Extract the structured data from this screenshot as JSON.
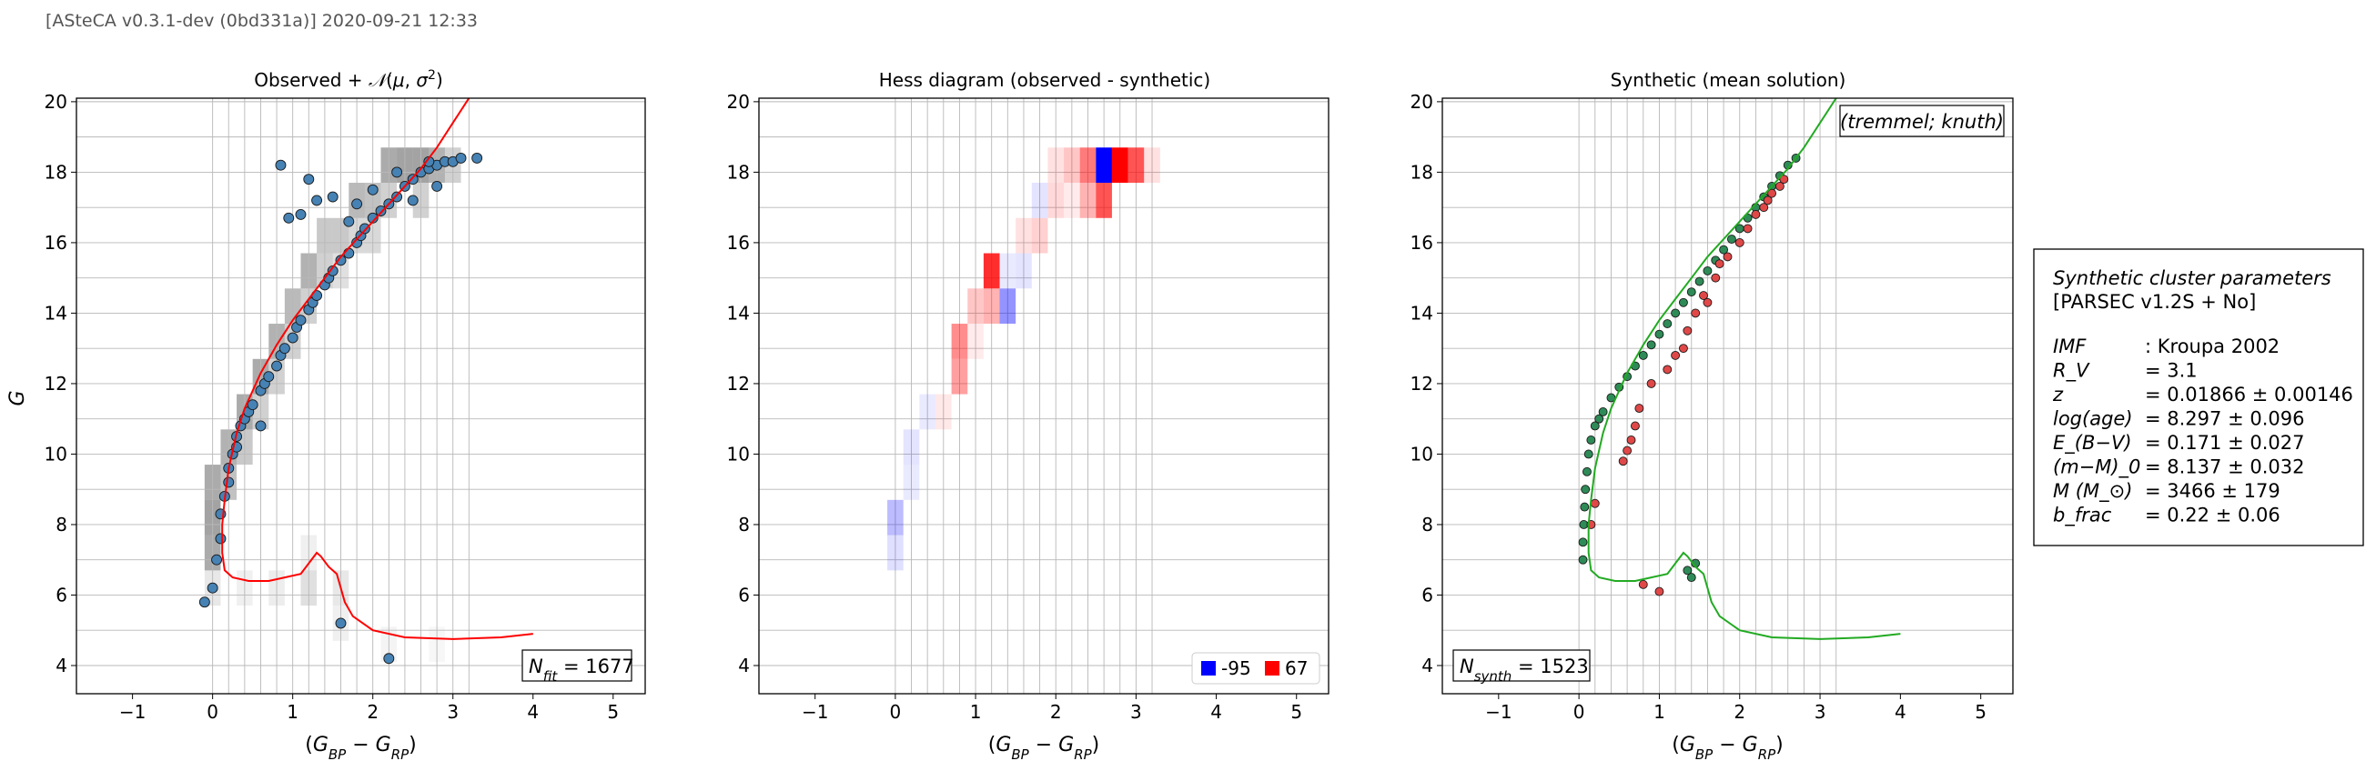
{
  "header": "[ASteCA v0.3.1-dev (0bd331a)] 2020-09-21 12:33",
  "colors": {
    "observed_marker": "#4682b4",
    "synthetic_single": "#2e8b57",
    "synthetic_binary": "#e04848",
    "isochrone_observed": "#ff0000",
    "isochrone_synthetic": "#22aa22",
    "hess_negative": "#0000ff",
    "hess_positive": "#ff0000"
  },
  "chart_data": [
    {
      "type": "scatter",
      "title": "Observed + N(μ, σ²)",
      "xlabel": "(G_BP − G_RP)",
      "ylabel": "G",
      "xlim": [
        -1.7,
        5.4
      ],
      "ylim": [
        20.1,
        3.2
      ],
      "y_inverted": true,
      "grid": true,
      "xticks": [
        -1,
        0,
        1,
        2,
        3,
        4,
        5
      ],
      "yticks": [
        4,
        6,
        8,
        10,
        12,
        14,
        16,
        18,
        20
      ],
      "annotation": "N_fit = 1677",
      "annotation_parts": {
        "sym": "N",
        "sub": "fit",
        "rest": " = 1677"
      },
      "series": [
        {
          "kind": "points",
          "x": [
            -0.1,
            0.0,
            0.05,
            0.1,
            0.1,
            0.15,
            0.2,
            0.2,
            0.25,
            0.3,
            0.3,
            0.35,
            0.4,
            0.45,
            0.5,
            0.6,
            0.65,
            0.7,
            0.8,
            0.85,
            0.9,
            1.0,
            1.05,
            1.1,
            1.2,
            1.25,
            1.3,
            1.4,
            1.45,
            1.5,
            1.6,
            1.7,
            1.8,
            1.85,
            1.9,
            2.0,
            2.1,
            2.2,
            2.3,
            2.4,
            2.5,
            2.6,
            2.7,
            2.8,
            2.9,
            3.0,
            3.1,
            3.3,
            0.95,
            1.1,
            1.3,
            1.5,
            1.7,
            1.8,
            1.2,
            0.85,
            2.2,
            1.6,
            2.0,
            2.5,
            2.8,
            0.6,
            2.3,
            2.7
          ],
          "y": [
            5.8,
            6.2,
            7.0,
            7.6,
            8.3,
            8.8,
            9.2,
            9.6,
            10.0,
            10.2,
            10.5,
            10.8,
            11.0,
            11.2,
            11.4,
            11.8,
            12.0,
            12.2,
            12.5,
            12.8,
            13.0,
            13.3,
            13.6,
            13.8,
            14.1,
            14.3,
            14.5,
            14.8,
            15.0,
            15.2,
            15.5,
            15.7,
            16.0,
            16.2,
            16.4,
            16.7,
            16.9,
            17.1,
            17.3,
            17.6,
            17.8,
            18.0,
            18.1,
            18.2,
            18.3,
            18.3,
            18.4,
            18.4,
            16.7,
            16.8,
            17.2,
            17.3,
            16.6,
            17.1,
            17.8,
            18.2,
            4.2,
            5.2,
            17.5,
            17.2,
            17.6,
            10.8,
            18.0,
            18.3
          ]
        },
        {
          "kind": "isochrone",
          "x": [
            3.2,
            3.0,
            2.8,
            2.6,
            2.4,
            2.2,
            2.0,
            1.8,
            1.6,
            1.4,
            1.2,
            1.0,
            0.8,
            0.6,
            0.4,
            0.3,
            0.2,
            0.15,
            0.12,
            0.12,
            0.15,
            0.25,
            0.45,
            0.7,
            0.9,
            1.1,
            1.3,
            1.35,
            1.45,
            1.55,
            1.6,
            1.65,
            1.75,
            2.0,
            2.4,
            3.0,
            3.6,
            4.0
          ],
          "y": [
            20.1,
            19.4,
            18.7,
            18.1,
            17.6,
            17.1,
            16.6,
            16.1,
            15.6,
            15.0,
            14.4,
            13.8,
            13.1,
            12.3,
            11.3,
            10.6,
            9.6,
            8.7,
            8.0,
            7.2,
            6.7,
            6.5,
            6.4,
            6.4,
            6.5,
            6.6,
            7.2,
            7.1,
            6.8,
            6.6,
            6.2,
            5.8,
            5.4,
            5.0,
            4.8,
            4.75,
            4.8,
            4.9
          ]
        }
      ]
    },
    {
      "type": "heatmap",
      "title": "Hess diagram (observed - synthetic)",
      "xlabel": "(G_BP − G_RP)",
      "xlim": [
        -1.7,
        5.4
      ],
      "ylim": [
        20.1,
        3.2
      ],
      "y_inverted": true,
      "grid": true,
      "xticks": [
        -1,
        0,
        1,
        2,
        3,
        4,
        5
      ],
      "yticks": [
        4,
        6,
        8,
        10,
        12,
        14,
        16,
        18,
        20
      ],
      "legend_placement": "bottom-right",
      "legend": [
        {
          "label": "-95",
          "value": -95
        },
        {
          "label": "67",
          "value": 67
        }
      ],
      "cells": [
        {
          "x": 0.0,
          "y": 7.2,
          "v": -12
        },
        {
          "x": 0.0,
          "y": 8.2,
          "v": -25
        },
        {
          "x": 0.2,
          "y": 9.2,
          "v": -8
        },
        {
          "x": 0.2,
          "y": 10.2,
          "v": -10
        },
        {
          "x": 0.4,
          "y": 11.2,
          "v": -8
        },
        {
          "x": 0.6,
          "y": 11.2,
          "v": 6
        },
        {
          "x": 0.8,
          "y": 12.2,
          "v": 25
        },
        {
          "x": 0.8,
          "y": 13.2,
          "v": 30
        },
        {
          "x": 1.0,
          "y": 13.2,
          "v": 5
        },
        {
          "x": 1.0,
          "y": 14.2,
          "v": 15
        },
        {
          "x": 1.2,
          "y": 14.2,
          "v": 20
        },
        {
          "x": 1.4,
          "y": 14.2,
          "v": -40
        },
        {
          "x": 1.2,
          "y": 15.2,
          "v": 55
        },
        {
          "x": 1.4,
          "y": 15.2,
          "v": -8
        },
        {
          "x": 1.6,
          "y": 15.2,
          "v": -10
        },
        {
          "x": 1.6,
          "y": 16.2,
          "v": 8
        },
        {
          "x": 1.8,
          "y": 16.2,
          "v": 12
        },
        {
          "x": 1.8,
          "y": 17.2,
          "v": -10
        },
        {
          "x": 2.0,
          "y": 17.2,
          "v": 10
        },
        {
          "x": 2.0,
          "y": 18.2,
          "v": 8
        },
        {
          "x": 2.2,
          "y": 18.2,
          "v": 15
        },
        {
          "x": 2.4,
          "y": 17.2,
          "v": 20
        },
        {
          "x": 2.4,
          "y": 18.2,
          "v": 35
        },
        {
          "x": 2.6,
          "y": 17.2,
          "v": 45
        },
        {
          "x": 2.6,
          "y": 18.2,
          "v": -95
        },
        {
          "x": 2.8,
          "y": 18.2,
          "v": 67
        },
        {
          "x": 3.0,
          "y": 18.2,
          "v": 45
        },
        {
          "x": 3.2,
          "y": 18.2,
          "v": 8
        },
        {
          "x": 2.2,
          "y": 17.2,
          "v": 5
        }
      ]
    },
    {
      "type": "scatter",
      "title": "Synthetic (mean solution)",
      "xlabel": "(G_BP − G_RP)",
      "xlim": [
        -1.7,
        5.4
      ],
      "ylim": [
        20.1,
        3.2
      ],
      "y_inverted": true,
      "grid": true,
      "xticks": [
        -1,
        0,
        1,
        2,
        3,
        4,
        5
      ],
      "yticks": [
        4,
        6,
        8,
        10,
        12,
        14,
        16,
        18,
        20
      ],
      "corner_label": "(tremmel; knuth)",
      "annotation": "N_synth = 1523",
      "annotation_parts": {
        "sym": "N",
        "sub": "synth",
        "rest": " = 1523"
      },
      "series": [
        {
          "kind": "single",
          "x": [
            0.05,
            0.05,
            0.06,
            0.07,
            0.08,
            0.1,
            0.12,
            0.15,
            0.2,
            0.25,
            0.3,
            0.4,
            0.5,
            0.6,
            0.7,
            0.8,
            0.9,
            1.0,
            1.1,
            1.2,
            1.3,
            1.4,
            1.5,
            1.6,
            1.7,
            1.8,
            1.9,
            2.0,
            2.1,
            2.2,
            2.3,
            2.4,
            2.5,
            2.6,
            2.7,
            1.35,
            1.4,
            1.45
          ],
          "y": [
            7.0,
            7.5,
            8.0,
            8.5,
            9.0,
            9.5,
            10.0,
            10.4,
            10.8,
            11.0,
            11.2,
            11.6,
            11.9,
            12.2,
            12.5,
            12.8,
            13.1,
            13.4,
            13.7,
            14.0,
            14.3,
            14.6,
            14.9,
            15.2,
            15.5,
            15.8,
            16.1,
            16.4,
            16.7,
            17.0,
            17.3,
            17.6,
            17.9,
            18.2,
            18.4,
            6.7,
            6.5,
            6.9
          ]
        },
        {
          "kind": "binary",
          "x": [
            0.8,
            1.0,
            0.55,
            0.6,
            0.65,
            0.7,
            0.75,
            0.9,
            1.1,
            1.2,
            1.35,
            1.45,
            1.55,
            1.7,
            1.85,
            2.0,
            2.1,
            2.2,
            2.3,
            2.4,
            2.5,
            1.6,
            1.75,
            2.35,
            2.55,
            0.15,
            0.2,
            1.3
          ],
          "y": [
            6.3,
            6.1,
            9.8,
            10.1,
            10.4,
            10.8,
            11.3,
            12.0,
            12.4,
            12.8,
            13.5,
            14.0,
            14.5,
            15.0,
            15.6,
            16.0,
            16.4,
            16.8,
            17.0,
            17.4,
            17.6,
            14.3,
            15.4,
            17.2,
            17.8,
            8.0,
            8.6,
            13.0
          ]
        },
        {
          "kind": "isochrone",
          "x": [
            3.2,
            3.0,
            2.8,
            2.6,
            2.4,
            2.2,
            2.0,
            1.8,
            1.6,
            1.4,
            1.2,
            1.0,
            0.8,
            0.6,
            0.4,
            0.3,
            0.2,
            0.15,
            0.12,
            0.12,
            0.15,
            0.25,
            0.45,
            0.7,
            0.9,
            1.1,
            1.3,
            1.35,
            1.45,
            1.55,
            1.6,
            1.65,
            1.75,
            2.0,
            2.4,
            3.0,
            3.6,
            4.0
          ],
          "y": [
            20.1,
            19.4,
            18.7,
            18.1,
            17.6,
            17.1,
            16.6,
            16.1,
            15.6,
            15.0,
            14.4,
            13.8,
            13.1,
            12.3,
            11.3,
            10.6,
            9.6,
            8.7,
            8.0,
            7.2,
            6.7,
            6.5,
            6.4,
            6.4,
            6.5,
            6.6,
            7.2,
            7.1,
            6.8,
            6.6,
            6.2,
            5.8,
            5.4,
            5.0,
            4.8,
            4.75,
            4.8,
            4.9
          ]
        }
      ]
    }
  ],
  "parameters_box": {
    "title": "Synthetic cluster parameters",
    "subtitle": "[PARSEC v1.2S + No]",
    "rows": [
      {
        "label": "IMF",
        "value": ": Kroupa 2002"
      },
      {
        "label": "R_V",
        "value": "= 3.1"
      },
      {
        "label": "z",
        "value": "= 0.01866 ± 0.00146"
      },
      {
        "label": "log(age)",
        "value": "= 8.297 ± 0.096"
      },
      {
        "label": "E_(B−V)",
        "value": "= 0.171 ± 0.027"
      },
      {
        "label": "(m−M)_0",
        "value": "= 8.137 ± 0.032"
      },
      {
        "label": "M (M_⊙)",
        "value": "= 3466 ± 179"
      },
      {
        "label": "b_frac",
        "value": "= 0.22 ± 0.06"
      }
    ]
  }
}
